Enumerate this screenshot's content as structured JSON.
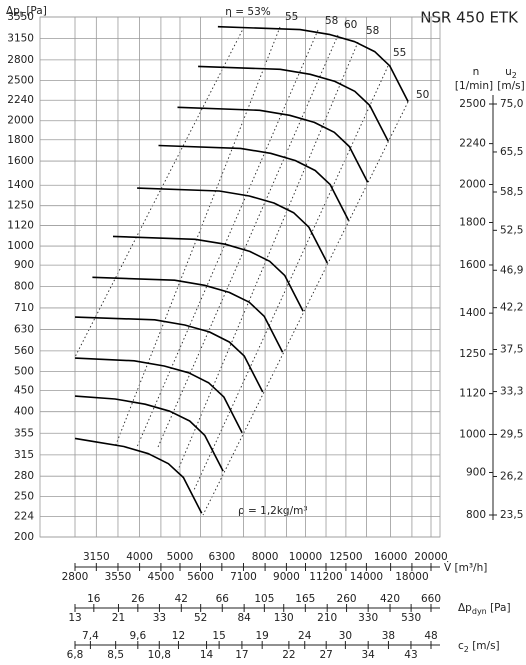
{
  "chart_data": {
    "type": "line",
    "title": "NSR 450 ETK",
    "x_log": true,
    "y_log": true,
    "grid": true,
    "y_label": {
      "symbol": "Δp",
      "sub": "t",
      "unit": " [Pa]"
    },
    "ylim": [
      200,
      3550
    ],
    "yticks": [
      3550,
      3150,
      2800,
      2500,
      2240,
      2000,
      1800,
      1600,
      1400,
      1250,
      1120,
      1000,
      900,
      800,
      710,
      630,
      560,
      500,
      450,
      400,
      355,
      315,
      280,
      250,
      224,
      200
    ],
    "x_label": {
      "symbol": "V̇",
      "unit": " [m³/h]"
    },
    "xlim": [
      2800,
      20000
    ],
    "xticks": [
      2800,
      3150,
      3550,
      4000,
      4500,
      5000,
      5600,
      6300,
      7100,
      8000,
      9000,
      10000,
      11200,
      12500,
      14000,
      16000,
      18000,
      20000
    ],
    "dp_dyn_axis": {
      "symbol": "Δp",
      "sub": "dyn",
      "unit": " [Pa]",
      "lim": [
        13,
        660
      ],
      "ticks": [
        13,
        16,
        21,
        26,
        33,
        42,
        52,
        66,
        84,
        105,
        130,
        165,
        210,
        260,
        330,
        420,
        530,
        660
      ]
    },
    "c2_axis": {
      "symbol": "c",
      "sub": "2",
      "unit": " [m/s]",
      "lim": [
        6.8,
        48
      ],
      "ticks": [
        {
          "value": 6.8,
          "label": "6,8"
        },
        {
          "value": 7.4,
          "label": "7,4"
        },
        {
          "value": 8.5,
          "label": "8,5"
        },
        {
          "value": 9.6,
          "label": "9,6"
        },
        {
          "value": 10.8,
          "label": "10,8"
        },
        12,
        14,
        15,
        17,
        19,
        22,
        24,
        27,
        30,
        34,
        38,
        43,
        48
      ]
    },
    "n_axis": {
      "symbol": "n",
      "unit": "[1/min]",
      "lim": [
        800,
        2500
      ],
      "ticks": [
        2500,
        2240,
        2000,
        1800,
        1600,
        1400,
        1250,
        1120,
        1000,
        900,
        800
      ]
    },
    "u2_axis": {
      "symbol": "u",
      "sub": "2",
      "unit": "[m/s]",
      "lim": [
        23.5,
        75
      ],
      "ticks": [
        {
          "value": 75.0,
          "label": "75,0"
        },
        {
          "value": 65.5,
          "label": "65,5"
        },
        {
          "value": 58.5,
          "label": "58,5"
        },
        {
          "value": 52.5,
          "label": "52,5"
        },
        {
          "value": 46.9,
          "label": "46,9"
        },
        {
          "value": 42.2,
          "label": "42,2"
        },
        {
          "value": 37.5,
          "label": "37,5"
        },
        {
          "value": 33.3,
          "label": "33,3"
        },
        {
          "value": 29.5,
          "label": "29,5"
        },
        {
          "value": 26.2,
          "label": "26,2"
        },
        {
          "value": 23.5,
          "label": "23,5"
        }
      ]
    },
    "efficiency_labels": [
      "η = 53%",
      "55",
      "58",
      "60",
      "58",
      "55",
      "50"
    ],
    "density_note": "ρ = 1,2kg/m³",
    "series": [
      {
        "color": "#000000",
        "x": [
          6166,
          9705,
          11455,
          13122,
          14655,
          15922,
          17620
        ],
        "values": [
          3365,
          3311,
          3221,
          3097,
          2931,
          2710,
          2223
        ]
      },
      {
        "color": "#000000",
        "x": [
          5525,
          8696,
          10264,
          11757,
          13131,
          14266,
          15788
        ],
        "values": [
          2701,
          2658,
          2586,
          2486,
          2353,
          2176,
          1785
        ]
      },
      {
        "color": "#000000",
        "x": [
          4933,
          7764,
          9164,
          10498,
          11724,
          12738,
          14096
        ],
        "values": [
          2154,
          2119,
          2061,
          1982,
          1876,
          1734,
          1423
        ]
      },
      {
        "color": "#000000",
        "x": [
          4440,
          6988,
          8248,
          9448,
          10552,
          11464,
          12686
        ],
        "values": [
          1744,
          1716,
          1670,
          1605,
          1519,
          1405,
          1152
        ]
      },
      {
        "color": "#000000",
        "x": [
          3946,
          6211,
          7331,
          8398,
          9379,
          10190,
          11277
        ],
        "values": [
          1378,
          1356,
          1319,
          1269,
          1201,
          1110,
          911
        ]
      },
      {
        "color": "#000000",
        "x": [
          3453,
          5435,
          6415,
          7348,
          8207,
          8916,
          9867
        ],
        "values": [
          1055,
          1038,
          1010,
          971,
          919,
          850,
          697
        ]
      },
      {
        "color": "#000000",
        "x": [
          3083,
          4853,
          5728,
          6561,
          7328,
          7961,
          8810
        ],
        "values": [
          841,
          828,
          805,
          774,
          733,
          678,
          556
        ]
      },
      {
        "color": "#000000",
        "x": [
          2800,
          4348,
          5132,
          5879,
          6565,
          7133,
          7894
        ],
        "values": [
          675,
          665,
          646,
          622,
          588,
          544,
          446
        ]
      },
      {
        "color": "#000000",
        "x": [
          2800,
          3882,
          4582,
          5249,
          5862,
          6369,
          7048
        ],
        "values": [
          538,
          530,
          515,
          496,
          469,
          434,
          356
        ]
      },
      {
        "color": "#000000",
        "x": [
          2800,
          3494,
          4124,
          4724,
          5276,
          5732,
          6343
        ],
        "values": [
          436,
          429,
          417,
          401,
          380,
          351,
          288
        ]
      },
      {
        "color": "#000000",
        "x": [
          2800,
          3106,
          3666,
          4199,
          4690,
          5095,
          5638
        ],
        "values": [
          345,
          339,
          330,
          317,
          300,
          278,
          228
        ]
      }
    ]
  }
}
